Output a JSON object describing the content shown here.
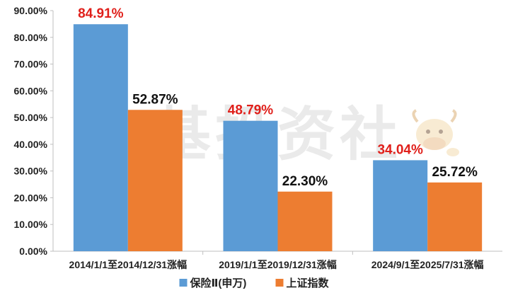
{
  "watermark": {
    "text": "牛基投资社"
  },
  "chart_data": {
    "type": "bar",
    "categories": [
      "2014/1/1至2014/12/31涨幅",
      "2019/1/1至2019/12/31涨幅",
      "2024/9/1至2025/7/31涨幅"
    ],
    "series": [
      {
        "name": "保险Ⅱ(申万)",
        "values": [
          84.91,
          48.79,
          34.04
        ],
        "labels": [
          "84.91%",
          "48.79%",
          "34.04%"
        ],
        "color": "#5b9bd5",
        "label_color": "#e0201b"
      },
      {
        "name": "上证指数",
        "values": [
          52.87,
          22.3,
          25.72
        ],
        "labels": [
          "52.87%",
          "22.30%",
          "25.72%"
        ],
        "color": "#ed7d31",
        "label_color": "#111111"
      }
    ],
    "yticks": [
      "0.00%",
      "10.00%",
      "20.00%",
      "30.00%",
      "40.00%",
      "50.00%",
      "60.00%",
      "70.00%",
      "80.00%",
      "90.00%"
    ],
    "ylim": [
      0,
      90
    ],
    "grid": false,
    "legend": "bottom"
  }
}
